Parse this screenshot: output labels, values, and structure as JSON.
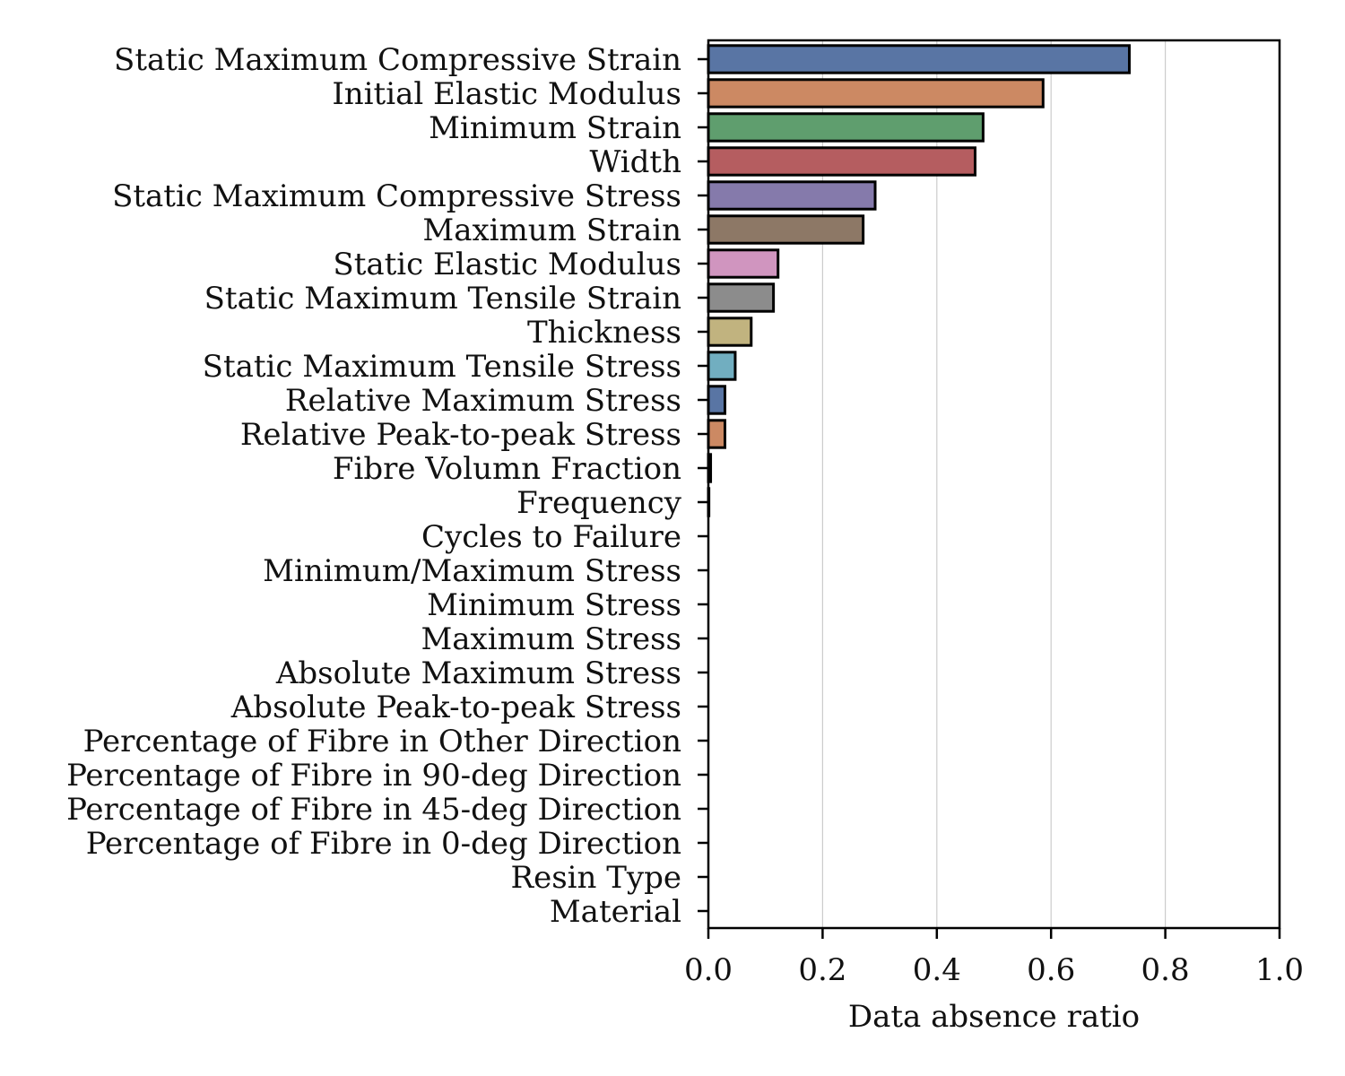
{
  "chart_data": {
    "type": "bar",
    "orientation": "horizontal",
    "title": "",
    "xlabel": "Data absence ratio",
    "ylabel": "",
    "xlim": [
      0,
      1.0
    ],
    "xticks": [
      "0.0",
      "0.2",
      "0.4",
      "0.6",
      "0.8",
      "1.0"
    ],
    "xtick_values": [
      0,
      0.2,
      0.4,
      0.6,
      0.8,
      1.0
    ],
    "grid": "vertical",
    "legend": "none",
    "categories": [
      "Static Maximum Compressive Strain",
      "Initial Elastic Modulus",
      "Minimum Strain",
      "Width",
      "Static Maximum Compressive Stress",
      "Maximum Strain",
      "Static Elastic Modulus",
      "Static Maximum Tensile Strain",
      "Thickness",
      "Static Maximum Tensile Stress",
      "Relative Maximum Stress",
      "Relative Peak-to-peak Stress",
      "Fibre Volumn Fraction",
      "Frequency",
      "Cycles to Failure",
      "Minimum/Maximum Stress",
      "Minimum Stress",
      "Maximum Stress",
      "Absolute Maximum Stress",
      "Absolute Peak-to-peak Stress",
      "Percentage of Fibre in Other Direction",
      "Percentage of Fibre in 90-deg Direction",
      "Percentage of Fibre in 45-deg Direction",
      "Percentage of Fibre in 0-deg Direction",
      "Resin Type",
      "Material"
    ],
    "values": [
      0.737,
      0.586,
      0.481,
      0.467,
      0.292,
      0.271,
      0.122,
      0.114,
      0.075,
      0.047,
      0.029,
      0.029,
      0.004,
      0.001,
      0,
      0,
      0,
      0,
      0,
      0,
      0,
      0,
      0,
      0,
      0,
      0
    ],
    "colors": [
      "#5975a4",
      "#cc8963",
      "#5f9e6e",
      "#b55d60",
      "#857aab",
      "#8d7866",
      "#d095bf",
      "#8c8c8c",
      "#c1b37f",
      "#71aec0"
    ]
  }
}
